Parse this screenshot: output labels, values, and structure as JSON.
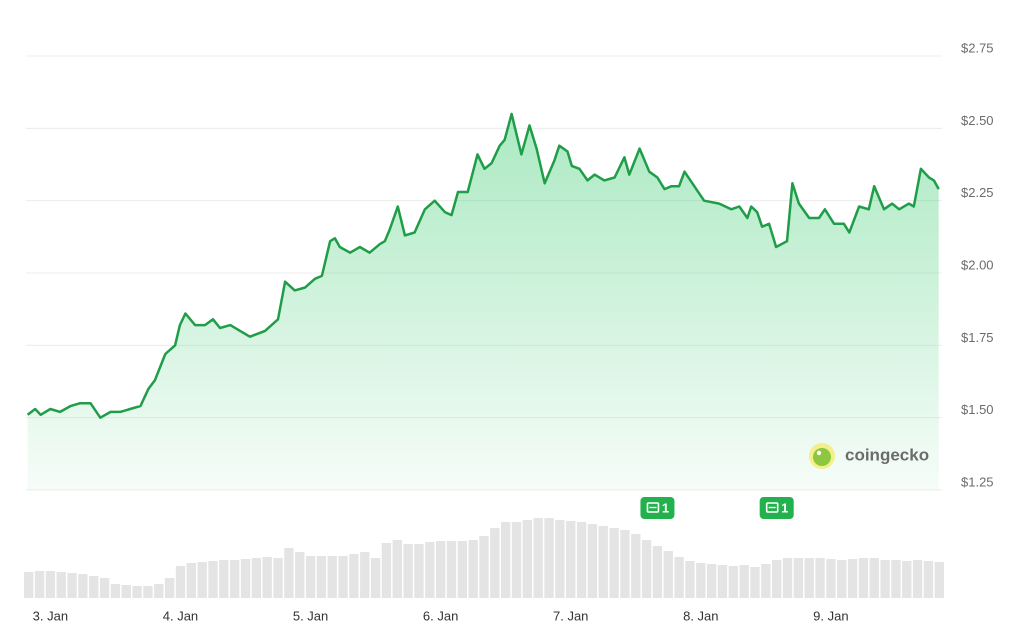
{
  "chart_data": {
    "type": "line",
    "xlim": [
      -4.5,
      164.5
    ],
    "ylim": [
      1.25,
      2.75
    ],
    "y2lim": [
      0,
      100
    ],
    "grid": true,
    "yticks": [
      {
        "value": 1.25,
        "label": "$1.25"
      },
      {
        "value": 1.5,
        "label": "$1.50"
      },
      {
        "value": 1.75,
        "label": "$1.75"
      },
      {
        "value": 2.0,
        "label": "$2.00"
      },
      {
        "value": 2.25,
        "label": "$2.25"
      },
      {
        "value": 2.5,
        "label": "$2.50"
      },
      {
        "value": 2.75,
        "label": "$2.75"
      }
    ],
    "xticks": [
      {
        "value": 0,
        "label": "3. Jan"
      },
      {
        "value": 24,
        "label": "4. Jan"
      },
      {
        "value": 48,
        "label": "5. Jan"
      },
      {
        "value": 72,
        "label": "6. Jan"
      },
      {
        "value": 96,
        "label": "7. Jan"
      },
      {
        "value": 120,
        "label": "8. Jan"
      },
      {
        "value": 144,
        "label": "9. Jan"
      }
    ],
    "series": [
      {
        "type": "line",
        "color": "#1f9d48",
        "x": [
          -4.2,
          -2.8,
          -1.8,
          0,
          1.8,
          3.7,
          5.5,
          7.4,
          9.2,
          11.1,
          12.9,
          14.7,
          16.6,
          18.1,
          19.3,
          21.2,
          23.0,
          23.9,
          24.9,
          26.7,
          28.5,
          30.0,
          31.3,
          33.2,
          35.0,
          36.8,
          39.6,
          42.0,
          43.3,
          45.1,
          47.0,
          48.8,
          50.1,
          51.6,
          52.5,
          53.4,
          55.3,
          57.1,
          58.9,
          60.8,
          61.7,
          62.6,
          64.1,
          65.4,
          67.2,
          69.1,
          70.9,
          72.8,
          74.0,
          75.2,
          77.0,
          78.8,
          80.1,
          81.4,
          82.9,
          83.8,
          85.1,
          86.9,
          88.4,
          89.7,
          91.2,
          93.0,
          93.9,
          95.4,
          96.2,
          97.6,
          99.1,
          100.4,
          102.2,
          104.1,
          105.9,
          106.8,
          108.7,
          110.5,
          112.0,
          113.3,
          114.6,
          116.0,
          117.0,
          118.8,
          120.6,
          123.4,
          125.6,
          127.1,
          128.6,
          129.3,
          130.4,
          131.3,
          132.6,
          133.9,
          135.9,
          136.9,
          138.1,
          140.0,
          141.8,
          142.9,
          144.6,
          146.4,
          147.4,
          149.2,
          151.0,
          152.0,
          153.8,
          155.3,
          156.6,
          158.4,
          159.3,
          160.6,
          162.1,
          163.0,
          163.9
        ],
        "values": [
          1.51,
          1.53,
          1.51,
          1.53,
          1.52,
          1.54,
          1.55,
          1.55,
          1.5,
          1.52,
          1.52,
          1.53,
          1.54,
          1.6,
          1.63,
          1.72,
          1.75,
          1.82,
          1.86,
          1.82,
          1.82,
          1.84,
          1.81,
          1.82,
          1.8,
          1.78,
          1.8,
          1.84,
          1.97,
          1.94,
          1.95,
          1.98,
          1.99,
          2.11,
          2.12,
          2.09,
          2.07,
          2.09,
          2.07,
          2.1,
          2.11,
          2.15,
          2.23,
          2.13,
          2.14,
          2.22,
          2.25,
          2.21,
          2.2,
          2.28,
          2.28,
          2.41,
          2.36,
          2.38,
          2.44,
          2.46,
          2.55,
          2.41,
          2.51,
          2.43,
          2.31,
          2.39,
          2.44,
          2.42,
          2.37,
          2.36,
          2.32,
          2.34,
          2.32,
          2.33,
          2.4,
          2.34,
          2.43,
          2.35,
          2.33,
          2.29,
          2.3,
          2.3,
          2.35,
          2.3,
          2.25,
          2.24,
          2.22,
          2.23,
          2.19,
          2.23,
          2.21,
          2.16,
          2.17,
          2.09,
          2.11,
          2.31,
          2.24,
          2.19,
          2.19,
          2.22,
          2.17,
          2.17,
          2.14,
          2.23,
          2.22,
          2.3,
          2.22,
          2.24,
          2.22,
          2.24,
          2.23,
          2.36,
          2.33,
          2.32,
          2.29
        ]
      },
      {
        "type": "bar",
        "axis": "y2",
        "color": "#e4e4e4",
        "x": [
          -4,
          -2,
          0,
          2,
          4,
          6,
          8,
          10,
          12,
          14,
          16,
          18,
          20,
          22,
          24,
          26,
          28,
          30,
          32,
          34,
          36,
          38,
          40,
          42,
          44,
          46,
          48,
          50,
          52,
          54,
          56,
          58,
          60,
          62,
          64,
          66,
          68,
          70,
          72,
          74,
          76,
          78,
          80,
          82,
          84,
          86,
          88,
          90,
          92,
          94,
          96,
          98,
          100,
          102,
          104,
          106,
          108,
          110,
          112,
          114,
          116,
          118,
          120,
          122,
          124,
          126,
          128,
          130,
          132,
          134,
          136,
          138,
          140,
          142,
          144,
          146,
          148,
          150,
          152,
          154,
          156,
          158,
          160,
          162,
          164
        ],
        "values": [
          26,
          27,
          27,
          26,
          25,
          24,
          22,
          20,
          14,
          13,
          12,
          12,
          14,
          20,
          32,
          35,
          36,
          37,
          38,
          38,
          39,
          40,
          41,
          40,
          50,
          46,
          42,
          42,
          42,
          42,
          44,
          46,
          40,
          55,
          58,
          54,
          54,
          56,
          57,
          57,
          57,
          58,
          62,
          70,
          76,
          76,
          78,
          80,
          80,
          78,
          77,
          76,
          74,
          72,
          70,
          68,
          64,
          58,
          52,
          47,
          41,
          37,
          35,
          34,
          33,
          32,
          33,
          31,
          34,
          38,
          40,
          40,
          40,
          40,
          39,
          38,
          39,
          40,
          40,
          38,
          38,
          37,
          38,
          37,
          36
        ]
      }
    ],
    "events": [
      {
        "x": 112,
        "label": "1"
      },
      {
        "x": 134,
        "label": "1"
      }
    ],
    "watermark": "coingecko"
  }
}
